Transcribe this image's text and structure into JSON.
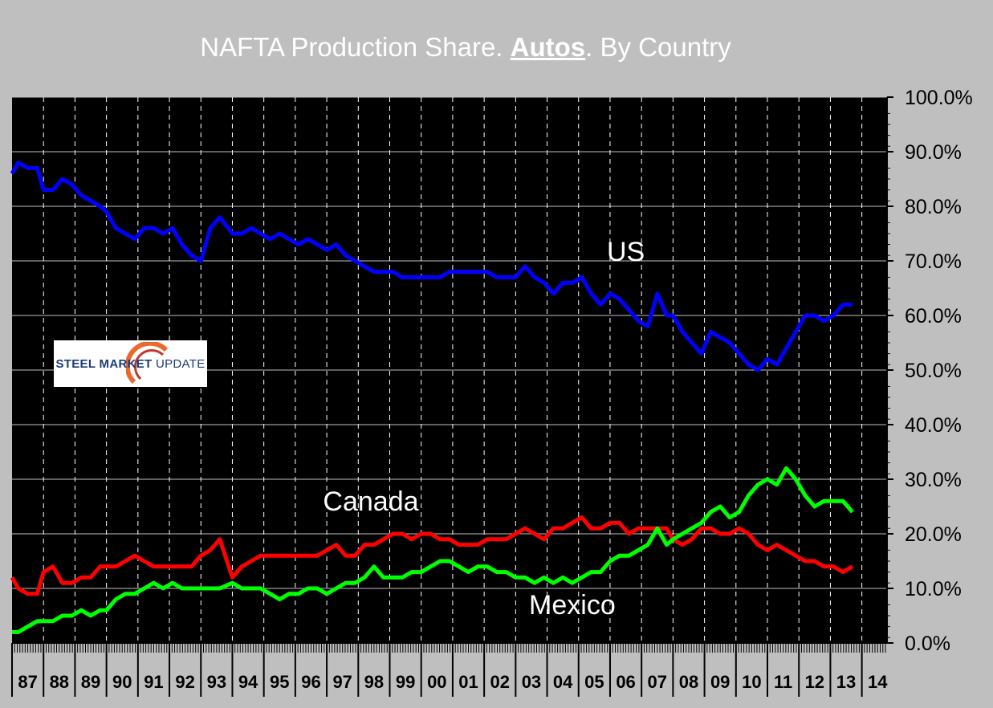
{
  "title": {
    "prefix": "NAFTA Production Share. ",
    "emph": "Autos",
    "suffix": ". By Country"
  },
  "logo": {
    "part1": "STEEL",
    "part2": " MARKET ",
    "part3": "UPDATE"
  },
  "chart_data": {
    "type": "line",
    "title": "NAFTA Production Share. Autos. By Country",
    "xlabel": "",
    "ylabel": "",
    "x_categories": [
      "87",
      "88",
      "89",
      "90",
      "91",
      "92",
      "93",
      "94",
      "95",
      "96",
      "97",
      "98",
      "99",
      "00",
      "01",
      "02",
      "03",
      "04",
      "05",
      "06",
      "07",
      "08",
      "09",
      "10",
      "11",
      "12",
      "13",
      "14"
    ],
    "ylim": [
      0,
      100
    ],
    "yticks": [
      "0.0%",
      "10.0%",
      "20.0%",
      "30.0%",
      "40.0%",
      "50.0%",
      "60.0%",
      "70.0%",
      "80.0%",
      "90.0%",
      "100.0%"
    ],
    "grid": {
      "vertical": "dashed",
      "horizontal": true
    },
    "background": "#000000",
    "series": [
      {
        "name": "US",
        "color": "#0000ff",
        "x": [
          1987.0,
          1987.2,
          1987.5,
          1987.8,
          1988.0,
          1988.3,
          1988.6,
          1988.9,
          1989.2,
          1989.5,
          1989.8,
          1990.0,
          1990.3,
          1990.6,
          1990.9,
          1991.2,
          1991.5,
          1991.8,
          1992.1,
          1992.4,
          1992.7,
          1993.0,
          1993.3,
          1993.6,
          1994.0,
          1994.3,
          1994.6,
          1994.9,
          1995.2,
          1995.5,
          1995.8,
          1996.1,
          1996.4,
          1996.7,
          1997.0,
          1997.3,
          1997.6,
          1997.9,
          1998.2,
          1998.5,
          1998.8,
          1999.1,
          1999.4,
          1999.7,
          2000.0,
          2000.3,
          2000.6,
          2000.9,
          2001.2,
          2001.5,
          2001.8,
          2002.1,
          2002.4,
          2002.7,
          2003.0,
          2003.3,
          2003.6,
          2003.9,
          2004.2,
          2004.5,
          2004.8,
          2005.1,
          2005.4,
          2005.7,
          2006.0,
          2006.3,
          2006.6,
          2006.9,
          2007.2,
          2007.5,
          2007.8,
          2008.0,
          2008.3,
          2008.6,
          2008.9,
          2009.2,
          2009.5,
          2009.8,
          2010.1,
          2010.4,
          2010.7,
          2011.0,
          2011.3,
          2011.6,
          2011.9,
          2012.2,
          2012.5,
          2012.8,
          2013.1,
          2013.4,
          2013.7
        ],
        "values": [
          86,
          88,
          87,
          87,
          83,
          83,
          85,
          84,
          82,
          81,
          80,
          79,
          76,
          75,
          74,
          76,
          76,
          75,
          76,
          73,
          71,
          70,
          76,
          78,
          75,
          75,
          76,
          75,
          74,
          75,
          74,
          73,
          74,
          73,
          72,
          73,
          71,
          70,
          69,
          68,
          68,
          68,
          67,
          67,
          67,
          67,
          67,
          68,
          68,
          68,
          68,
          68,
          67,
          67,
          67,
          69,
          67,
          66,
          64,
          66,
          66,
          67,
          64,
          62,
          64,
          63,
          61,
          59,
          58,
          64,
          60,
          60,
          57,
          55,
          53,
          57,
          56,
          55,
          53,
          51,
          50,
          52,
          51,
          54,
          57,
          60,
          60,
          59,
          60,
          62,
          62
        ]
      },
      {
        "name": "Canada",
        "color": "#ff0000",
        "x": [
          1987.0,
          1987.2,
          1987.5,
          1987.8,
          1988.0,
          1988.3,
          1988.6,
          1988.9,
          1989.2,
          1989.5,
          1989.8,
          1990.0,
          1990.3,
          1990.6,
          1990.9,
          1991.2,
          1991.5,
          1991.8,
          1992.1,
          1992.4,
          1992.7,
          1993.0,
          1993.3,
          1993.6,
          1994.0,
          1994.3,
          1994.6,
          1994.9,
          1995.2,
          1995.5,
          1995.8,
          1996.1,
          1996.4,
          1996.7,
          1997.0,
          1997.3,
          1997.6,
          1997.9,
          1998.2,
          1998.5,
          1998.8,
          1999.1,
          1999.4,
          1999.7,
          2000.0,
          2000.3,
          2000.6,
          2000.9,
          2001.2,
          2001.5,
          2001.8,
          2002.1,
          2002.4,
          2002.7,
          2003.0,
          2003.3,
          2003.6,
          2003.9,
          2004.2,
          2004.5,
          2004.8,
          2005.1,
          2005.4,
          2005.7,
          2006.0,
          2006.3,
          2006.6,
          2006.9,
          2007.2,
          2007.5,
          2007.8,
          2008.0,
          2008.3,
          2008.6,
          2008.9,
          2009.2,
          2009.5,
          2009.8,
          2010.1,
          2010.4,
          2010.7,
          2011.0,
          2011.3,
          2011.6,
          2011.9,
          2012.2,
          2012.5,
          2012.8,
          2013.1,
          2013.4,
          2013.7
        ],
        "values": [
          12,
          10,
          9,
          9,
          13,
          14,
          11,
          11,
          12,
          12,
          14,
          14,
          14,
          15,
          16,
          15,
          14,
          14,
          14,
          14,
          14,
          16,
          17,
          19,
          12,
          14,
          15,
          16,
          16,
          16,
          16,
          16,
          16,
          16,
          17,
          18,
          16,
          16,
          18,
          18,
          19,
          20,
          20,
          19,
          20,
          20,
          19,
          19,
          18,
          18,
          18,
          19,
          19,
          19,
          20,
          21,
          20,
          19,
          21,
          21,
          22,
          23,
          21,
          21,
          22,
          22,
          20,
          21,
          21,
          21,
          21,
          19,
          18,
          19,
          21,
          21,
          20,
          20,
          21,
          20,
          18,
          17,
          18,
          17,
          16,
          15,
          15,
          14,
          14,
          13,
          14
        ]
      },
      {
        "name": "Mexico",
        "color": "#00ff00",
        "x": [
          1987.0,
          1987.2,
          1987.5,
          1987.8,
          1988.0,
          1988.3,
          1988.6,
          1988.9,
          1989.2,
          1989.5,
          1989.8,
          1990.0,
          1990.3,
          1990.6,
          1990.9,
          1991.2,
          1991.5,
          1991.8,
          1992.1,
          1992.4,
          1992.7,
          1993.0,
          1993.3,
          1993.6,
          1994.0,
          1994.3,
          1994.6,
          1994.9,
          1995.2,
          1995.5,
          1995.8,
          1996.1,
          1996.4,
          1996.7,
          1997.0,
          1997.3,
          1997.6,
          1997.9,
          1998.2,
          1998.5,
          1998.8,
          1999.1,
          1999.4,
          1999.7,
          2000.0,
          2000.3,
          2000.6,
          2000.9,
          2001.2,
          2001.5,
          2001.8,
          2002.1,
          2002.4,
          2002.7,
          2003.0,
          2003.3,
          2003.6,
          2003.9,
          2004.2,
          2004.5,
          2004.8,
          2005.1,
          2005.4,
          2005.7,
          2006.0,
          2006.3,
          2006.6,
          2006.9,
          2007.2,
          2007.5,
          2007.8,
          2008.0,
          2008.3,
          2008.6,
          2008.9,
          2009.2,
          2009.5,
          2009.8,
          2010.1,
          2010.4,
          2010.7,
          2011.0,
          2011.3,
          2011.6,
          2011.9,
          2012.2,
          2012.5,
          2012.8,
          2013.1,
          2013.4,
          2013.7
        ],
        "values": [
          2,
          2,
          3,
          4,
          4,
          4,
          5,
          5,
          6,
          5,
          6,
          6,
          8,
          9,
          9,
          10,
          11,
          10,
          11,
          10,
          10,
          10,
          10,
          10,
          11,
          10,
          10,
          10,
          9,
          8,
          9,
          9,
          10,
          10,
          9,
          10,
          11,
          11,
          12,
          14,
          12,
          12,
          12,
          13,
          13,
          14,
          15,
          15,
          14,
          13,
          14,
          14,
          13,
          13,
          12,
          12,
          11,
          12,
          11,
          12,
          11,
          12,
          13,
          13,
          15,
          16,
          16,
          17,
          18,
          21,
          18,
          19,
          20,
          21,
          22,
          24,
          25,
          23,
          24,
          27,
          29,
          30,
          29,
          32,
          30,
          27,
          25,
          26,
          26,
          26,
          24
        ]
      }
    ],
    "annotations": [
      {
        "text": "US",
        "x": 2006.5,
        "y": 70
      },
      {
        "text": "Canada",
        "x": 1998.4,
        "y": 24.3
      },
      {
        "text": "Mexico",
        "x": 2004.8,
        "y": 5.3
      }
    ]
  }
}
